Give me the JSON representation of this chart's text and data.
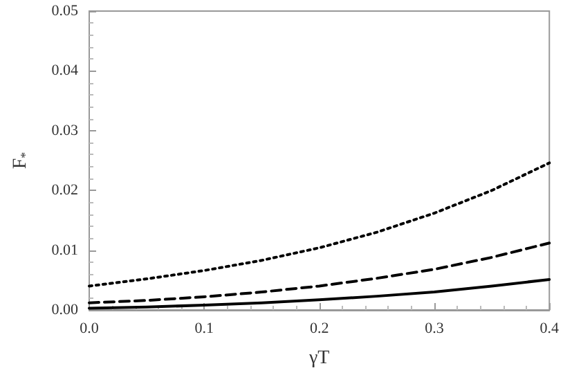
{
  "chart_data": {
    "type": "line",
    "xlabel": "γT",
    "ylabel": "F$_{*}$",
    "x": [
      0,
      0.05,
      0.1,
      0.15,
      0.2,
      0.25,
      0.3,
      0.35,
      0.4
    ],
    "series": [
      {
        "color": "#000000",
        "line_style": "dotted",
        "values": [
          0.004,
          0.0052,
          0.0066,
          0.0083,
          0.0104,
          0.013,
          0.0162,
          0.02,
          0.0246
        ]
      },
      {
        "color": "#000000",
        "line_style": "dashed",
        "values": [
          0.0012,
          0.0016,
          0.0022,
          0.003,
          0.004,
          0.0053,
          0.0068,
          0.0088,
          0.0112
        ]
      },
      {
        "color": "#000000",
        "line_style": "solid",
        "values": [
          0.0003,
          0.0005,
          0.0008,
          0.0012,
          0.0017,
          0.0023,
          0.003,
          0.004,
          0.0051
        ]
      }
    ],
    "xlim": [
      0,
      0.4
    ],
    "xticks": [
      {
        "value": 0,
        "label": "0.0"
      },
      0.1,
      0.2,
      0.3,
      0.4
    ],
    "ylim": [
      0,
      0.05
    ],
    "yticks": [
      {
        "value": 0,
        "label": "0.00"
      },
      0.01,
      0.02,
      0.03,
      0.04,
      0.05
    ],
    "grid": false,
    "marker": "none"
  }
}
